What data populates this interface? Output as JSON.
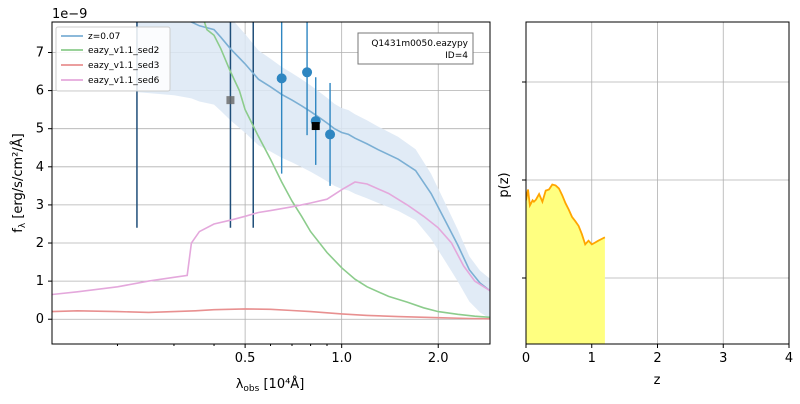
{
  "chart_data": [
    {
      "type": "line",
      "scale_factor_label": "1e−9",
      "xlabel_main": "λ",
      "xlabel_sub": "obs",
      "xlabel_unit": " [10⁴Å]",
      "ylabel_main": "f",
      "ylabel_sub": "λ",
      "ylabel_unit": " [erg/s/cm²/Å]",
      "x_scale": "log",
      "xlim": [
        0.125,
        2.9
      ],
      "ylim": [
        -0.65,
        7.8
      ],
      "grid": true,
      "xticks": [
        0.5,
        1.0,
        2.0
      ],
      "xtick_labels": [
        "0.5",
        "1.0",
        "2.0"
      ],
      "yticks": [
        0,
        1,
        2,
        3,
        4,
        5,
        6,
        7
      ],
      "legend_position": "upper-left",
      "annotation": [
        "Q1431m0050.eazypy",
        "ID=4"
      ],
      "colors": {
        "best_fit": "#7bafd4",
        "best_fit_band": "#dce8f4",
        "sed2": "#8ccc8c",
        "sed3": "#e89090",
        "sed6": "#e4a8dc",
        "photometry": "#2e86c1",
        "upper_limit": "#1f4e79"
      },
      "series": [
        {
          "name": "z=0.07",
          "x": [
            0.23,
            0.3,
            0.34,
            0.36,
            0.4,
            0.42,
            0.45,
            0.5,
            0.55,
            0.6,
            0.65,
            0.7,
            0.75,
            0.8,
            0.85,
            0.9,
            0.95,
            1.0,
            1.05,
            1.1,
            1.2,
            1.3,
            1.5,
            1.7,
            1.9,
            2.1,
            2.3,
            2.5,
            2.7,
            2.9
          ],
          "y": [
            8.0,
            7.9,
            7.8,
            7.7,
            7.6,
            7.4,
            7.1,
            6.7,
            6.3,
            6.1,
            5.9,
            5.75,
            5.6,
            5.45,
            5.3,
            5.15,
            5.0,
            4.9,
            4.85,
            4.75,
            4.6,
            4.45,
            4.2,
            3.9,
            3.3,
            2.6,
            1.95,
            1.3,
            0.95,
            0.75
          ]
        },
        {
          "name": "eazy_v1.1_sed2",
          "x": [
            0.37,
            0.38,
            0.4,
            0.42,
            0.45,
            0.48,
            0.5,
            0.55,
            0.6,
            0.65,
            0.7,
            0.75,
            0.8,
            0.9,
            1.0,
            1.1,
            1.2,
            1.4,
            1.6,
            1.8,
            2.0,
            2.3,
            2.6,
            2.9
          ],
          "y": [
            7.9,
            7.6,
            7.45,
            7.1,
            6.5,
            6.0,
            5.5,
            4.8,
            4.2,
            3.6,
            3.1,
            2.7,
            2.3,
            1.75,
            1.35,
            1.05,
            0.85,
            0.6,
            0.45,
            0.3,
            0.2,
            0.13,
            0.08,
            0.05
          ]
        },
        {
          "name": "eazy_v1.1_sed3",
          "x": [
            0.125,
            0.15,
            0.2,
            0.25,
            0.3,
            0.35,
            0.4,
            0.5,
            0.6,
            0.7,
            0.8,
            0.9,
            1.0,
            1.2,
            1.5,
            2.0,
            2.5,
            2.9
          ],
          "y": [
            0.2,
            0.22,
            0.2,
            0.18,
            0.2,
            0.22,
            0.25,
            0.27,
            0.26,
            0.23,
            0.2,
            0.17,
            0.14,
            0.1,
            0.07,
            0.04,
            0.02,
            0.01
          ]
        },
        {
          "name": "eazy_v1.1_sed6",
          "x": [
            0.125,
            0.15,
            0.2,
            0.25,
            0.3,
            0.33,
            0.34,
            0.36,
            0.4,
            0.45,
            0.5,
            0.55,
            0.6,
            0.7,
            0.8,
            0.9,
            1.0,
            1.1,
            1.2,
            1.4,
            1.6,
            1.8,
            2.0,
            2.2,
            2.4,
            2.6,
            2.9
          ],
          "y": [
            0.65,
            0.72,
            0.85,
            1.0,
            1.1,
            1.15,
            2.0,
            2.3,
            2.5,
            2.6,
            2.7,
            2.8,
            2.85,
            2.95,
            3.05,
            3.15,
            3.4,
            3.6,
            3.55,
            3.3,
            3.0,
            2.7,
            2.4,
            2.0,
            1.4,
            1.0,
            0.75
          ]
        }
      ],
      "photometry": [
        {
          "x": 0.65,
          "y": 6.32,
          "yerr": 2.5
        },
        {
          "x": 0.78,
          "y": 6.48,
          "yerr": 1.65
        },
        {
          "x": 0.83,
          "y": 5.2,
          "yerr": 1.15
        },
        {
          "x": 0.92,
          "y": 4.85,
          "yerr": 1.35
        }
      ],
      "model_points": [
        {
          "x": 0.45,
          "y": 5.75,
          "shape": "square",
          "color": "#666666"
        },
        {
          "x": 0.83,
          "y": 5.07,
          "shape": "square",
          "color": "#000000"
        }
      ],
      "upper_limit_lines": [
        0.23,
        0.45,
        0.53
      ]
    },
    {
      "type": "area",
      "xlabel": "z",
      "ylabel": "p(z)",
      "xlim": [
        0,
        4
      ],
      "xticks": [
        0,
        1,
        2,
        3,
        4
      ],
      "xtick_labels": [
        "0",
        "1",
        "2",
        "3",
        "4"
      ],
      "y_scale": "log",
      "grid": true,
      "line_color": "#ffa500",
      "fill_color": "#ffff80",
      "x": [
        0.0,
        0.03,
        0.06,
        0.1,
        0.12,
        0.15,
        0.2,
        0.25,
        0.3,
        0.35,
        0.4,
        0.45,
        0.5,
        0.55,
        0.6,
        0.65,
        0.7,
        0.75,
        0.8,
        0.85,
        0.9,
        0.95,
        1.0,
        1.05,
        1.1,
        1.15,
        1.2
      ],
      "y": [
        0.62,
        0.8,
        0.55,
        0.62,
        0.6,
        0.63,
        0.72,
        0.6,
        0.78,
        0.8,
        0.9,
        0.88,
        0.82,
        0.7,
        0.58,
        0.5,
        0.42,
        0.38,
        0.34,
        0.28,
        0.22,
        0.24,
        0.22,
        0.23,
        0.24,
        0.25,
        0.26
      ]
    }
  ]
}
